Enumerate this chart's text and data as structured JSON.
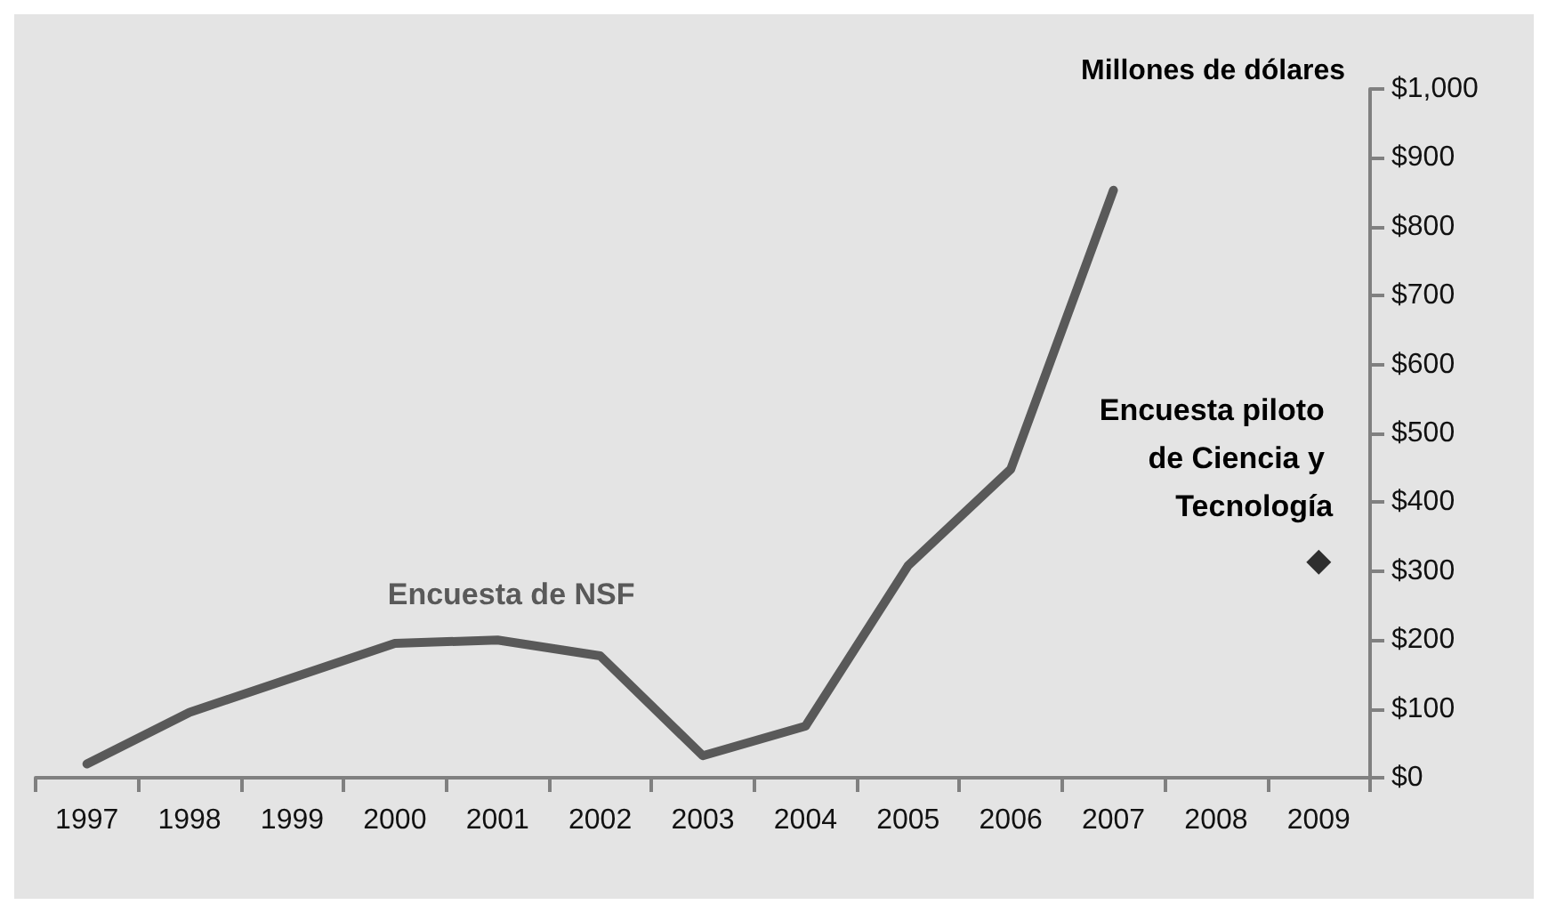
{
  "chart_data": {
    "type": "line",
    "ylabel": "Millones de dólares",
    "categories": [
      "1997",
      "1998",
      "1999",
      "2000",
      "2001",
      "2002",
      "2003",
      "2004",
      "2005",
      "2006",
      "2007",
      "2008",
      "2009"
    ],
    "series": [
      {
        "name": "Encuesta de NSF",
        "color": "#595959",
        "marker": "none",
        "values": [
          20,
          95,
          145,
          195,
          200,
          177,
          32,
          75,
          308,
          448,
          853,
          null,
          null
        ]
      },
      {
        "name": "Encuesta piloto de Ciencia y Tecnología",
        "type": "scatter",
        "color": "#000000",
        "marker": "diamond",
        "values": [
          null,
          null,
          null,
          null,
          null,
          null,
          null,
          null,
          null,
          null,
          null,
          null,
          313
        ]
      }
    ],
    "ylim": [
      0,
      1000
    ],
    "yticks": [
      {
        "value": 0,
        "label": "$0"
      },
      {
        "value": 100,
        "label": "$100"
      },
      {
        "value": 200,
        "label": "$200"
      },
      {
        "value": 300,
        "label": "$300"
      },
      {
        "value": 400,
        "label": "$400"
      },
      {
        "value": 500,
        "label": "$500"
      },
      {
        "value": 600,
        "label": "$600"
      },
      {
        "value": 700,
        "label": "$700"
      },
      {
        "value": 800,
        "label": "$800"
      },
      {
        "value": 900,
        "label": "$900"
      },
      {
        "value": 1000,
        "label": "$1,000"
      }
    ],
    "grid": false,
    "legend": false
  }
}
